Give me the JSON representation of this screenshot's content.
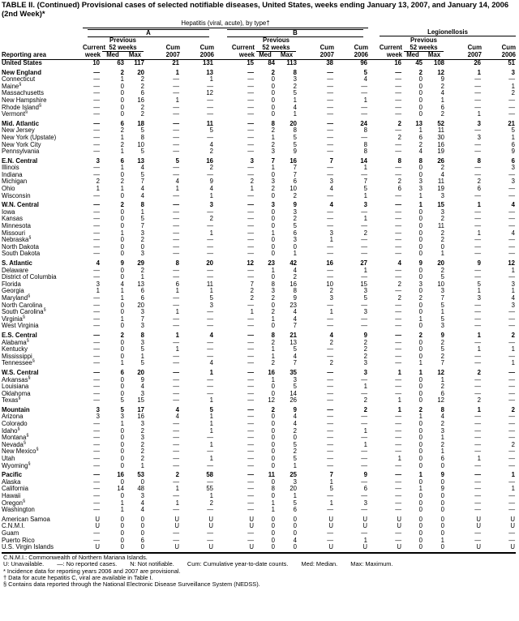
{
  "title": "TABLE II. (Continued) Provisional cases of selected notifiable diseases, United States, weeks ending January 13, 2007, and January 14, 2006 (2nd Week)*",
  "header": {
    "group": "Hepatitis (viral, acute), by type†",
    "sub_a": "A",
    "sub_b": "B",
    "legion": "Legionellosis",
    "reporting_area": "Reporting area",
    "current": "Current",
    "week": "week",
    "previous": "Previous",
    "weeks52": "52 weeks",
    "med": "Med",
    "max": "Max",
    "cum": "Cum",
    "y2007": "2007",
    "y2006": "2006"
  },
  "rows": [
    {
      "area": "United States",
      "bold": true,
      "v": [
        "10",
        "63",
        "117",
        "21",
        "131",
        "15",
        "84",
        "113",
        "38",
        "96",
        "16",
        "45",
        "108",
        "26",
        "51"
      ]
    },
    {
      "gap": true
    },
    {
      "area": "New England",
      "bold": true,
      "v": [
        "—",
        "2",
        "20",
        "1",
        "13",
        "—",
        "2",
        "8",
        "—",
        "5",
        "—",
        "2",
        "12",
        "1",
        "3"
      ]
    },
    {
      "area": "Connecticut",
      "v": [
        "—",
        "1",
        "2",
        "—",
        "1",
        "—",
        "0",
        "3",
        "—",
        "4",
        "—",
        "0",
        "9",
        "—",
        "—"
      ]
    },
    {
      "area": "Maine§",
      "v": [
        "—",
        "0",
        "2",
        "—",
        "—",
        "—",
        "0",
        "2",
        "—",
        "—",
        "—",
        "0",
        "2",
        "—",
        "1"
      ]
    },
    {
      "area": "Massachusetts",
      "v": [
        "—",
        "0",
        "6",
        "—",
        "12",
        "—",
        "0",
        "5",
        "—",
        "—",
        "—",
        "0",
        "4",
        "—",
        "2"
      ]
    },
    {
      "area": "New Hampshire",
      "v": [
        "—",
        "0",
        "16",
        "1",
        "—",
        "—",
        "0",
        "1",
        "—",
        "1",
        "—",
        "0",
        "1",
        "—",
        "—"
      ]
    },
    {
      "area": "Rhode Island§",
      "v": [
        "—",
        "0",
        "2",
        "—",
        "—",
        "—",
        "0",
        "4",
        "—",
        "—",
        "—",
        "0",
        "6",
        "—",
        "—"
      ]
    },
    {
      "area": "Vermont§",
      "v": [
        "—",
        "0",
        "2",
        "—",
        "—",
        "—",
        "0",
        "1",
        "—",
        "—",
        "—",
        "0",
        "2",
        "1",
        "—"
      ]
    },
    {
      "gap": true
    },
    {
      "area": "Mid. Atlantic",
      "bold": true,
      "v": [
        "—",
        "6",
        "18",
        "—",
        "11",
        "—",
        "8",
        "20",
        "—",
        "24",
        "2",
        "13",
        "52",
        "3",
        "21"
      ]
    },
    {
      "area": "New Jersey",
      "v": [
        "—",
        "2",
        "5",
        "—",
        "5",
        "—",
        "2",
        "8",
        "—",
        "8",
        "—",
        "1",
        "11",
        "—",
        "5"
      ]
    },
    {
      "area": "New York (Upstate)",
      "v": [
        "—",
        "1",
        "8",
        "—",
        "—",
        "—",
        "1",
        "5",
        "—",
        "—",
        "2",
        "6",
        "30",
        "3",
        "1"
      ]
    },
    {
      "area": "New York City",
      "v": [
        "—",
        "2",
        "10",
        "—",
        "4",
        "—",
        "2",
        "5",
        "—",
        "8",
        "—",
        "2",
        "16",
        "—",
        "6"
      ]
    },
    {
      "area": "Pennsylvania",
      "v": [
        "—",
        "1",
        "5",
        "—",
        "2",
        "—",
        "3",
        "9",
        "—",
        "8",
        "—",
        "4",
        "19",
        "—",
        "9"
      ]
    },
    {
      "gap": true
    },
    {
      "area": "E.N. Central",
      "bold": true,
      "v": [
        "3",
        "6",
        "13",
        "5",
        "16",
        "3",
        "7",
        "16",
        "7",
        "14",
        "8",
        "8",
        "26",
        "8",
        "6"
      ]
    },
    {
      "area": "Illinois",
      "v": [
        "—",
        "1",
        "4",
        "—",
        "2",
        "—",
        "1",
        "7",
        "—",
        "1",
        "—",
        "0",
        "2",
        "—",
        "3"
      ]
    },
    {
      "area": "Indiana",
      "v": [
        "—",
        "0",
        "5",
        "—",
        "—",
        "—",
        "0",
        "7",
        "—",
        "—",
        "—",
        "0",
        "4",
        "—",
        "—"
      ]
    },
    {
      "area": "Michigan",
      "v": [
        "2",
        "2",
        "7",
        "4",
        "9",
        "2",
        "3",
        "6",
        "3",
        "7",
        "2",
        "3",
        "11",
        "2",
        "3"
      ]
    },
    {
      "area": "Ohio",
      "v": [
        "1",
        "1",
        "4",
        "1",
        "4",
        "1",
        "2",
        "10",
        "4",
        "5",
        "6",
        "3",
        "19",
        "6",
        "—"
      ]
    },
    {
      "area": "Wisconsin",
      "v": [
        "—",
        "0",
        "4",
        "—",
        "1",
        "—",
        "0",
        "2",
        "—",
        "1",
        "—",
        "1",
        "3",
        "—",
        "—"
      ]
    },
    {
      "gap": true
    },
    {
      "area": "W.N. Central",
      "bold": true,
      "v": [
        "—",
        "2",
        "8",
        "—",
        "3",
        "—",
        "3",
        "9",
        "4",
        "3",
        "—",
        "1",
        "15",
        "1",
        "4"
      ]
    },
    {
      "area": "Iowa",
      "v": [
        "—",
        "0",
        "1",
        "—",
        "—",
        "—",
        "0",
        "3",
        "—",
        "—",
        "—",
        "0",
        "3",
        "—",
        "—"
      ]
    },
    {
      "area": "Kansas",
      "v": [
        "—",
        "0",
        "5",
        "—",
        "2",
        "—",
        "0",
        "2",
        "—",
        "1",
        "—",
        "0",
        "2",
        "—",
        "—"
      ]
    },
    {
      "area": "Minnesota",
      "v": [
        "—",
        "0",
        "7",
        "—",
        "—",
        "—",
        "0",
        "5",
        "—",
        "—",
        "—",
        "0",
        "11",
        "—",
        "—"
      ]
    },
    {
      "area": "Missouri",
      "v": [
        "—",
        "1",
        "3",
        "—",
        "1",
        "—",
        "1",
        "6",
        "3",
        "2",
        "—",
        "0",
        "2",
        "1",
        "4"
      ]
    },
    {
      "area": "Nebraska§",
      "v": [
        "—",
        "0",
        "2",
        "—",
        "—",
        "—",
        "0",
        "3",
        "1",
        "—",
        "—",
        "0",
        "2",
        "—",
        "—"
      ]
    },
    {
      "area": "North Dakota",
      "v": [
        "—",
        "0",
        "0",
        "—",
        "—",
        "—",
        "0",
        "0",
        "—",
        "—",
        "—",
        "0",
        "0",
        "—",
        "—"
      ]
    },
    {
      "area": "South Dakota",
      "v": [
        "—",
        "0",
        "3",
        "—",
        "—",
        "—",
        "0",
        "1",
        "—",
        "—",
        "—",
        "0",
        "1",
        "—",
        "—"
      ]
    },
    {
      "gap": true
    },
    {
      "area": "S. Atlantic",
      "bold": true,
      "v": [
        "4",
        "9",
        "29",
        "8",
        "20",
        "12",
        "23",
        "42",
        "16",
        "27",
        "4",
        "9",
        "20",
        "9",
        "12"
      ]
    },
    {
      "area": "Delaware",
      "v": [
        "—",
        "0",
        "2",
        "—",
        "—",
        "—",
        "1",
        "4",
        "—",
        "1",
        "—",
        "0",
        "2",
        "—",
        "1"
      ]
    },
    {
      "area": "District of Columbia",
      "v": [
        "—",
        "0",
        "1",
        "—",
        "—",
        "—",
        "0",
        "2",
        "—",
        "—",
        "—",
        "0",
        "5",
        "—",
        "—"
      ]
    },
    {
      "area": "Florida",
      "v": [
        "3",
        "4",
        "13",
        "6",
        "11",
        "7",
        "8",
        "16",
        "10",
        "15",
        "2",
        "3",
        "10",
        "5",
        "3"
      ]
    },
    {
      "area": "Georgia",
      "v": [
        "1",
        "1",
        "6",
        "1",
        "1",
        "2",
        "3",
        "8",
        "2",
        "3",
        "—",
        "0",
        "3",
        "1",
        "1"
      ]
    },
    {
      "area": "Maryland§",
      "v": [
        "—",
        "1",
        "6",
        "—",
        "5",
        "2",
        "2",
        "9",
        "3",
        "5",
        "2",
        "2",
        "7",
        "3",
        "4"
      ]
    },
    {
      "area": "North Carolina",
      "v": [
        "—",
        "0",
        "20",
        "—",
        "3",
        "—",
        "0",
        "23",
        "—",
        "—",
        "—",
        "0",
        "5",
        "—",
        "3"
      ]
    },
    {
      "area": "South Carolina§",
      "v": [
        "—",
        "0",
        "3",
        "1",
        "—",
        "1",
        "2",
        "4",
        "1",
        "3",
        "—",
        "0",
        "1",
        "—",
        "—"
      ]
    },
    {
      "area": "Virginia§",
      "v": [
        "—",
        "1",
        "7",
        "—",
        "—",
        "—",
        "1",
        "4",
        "—",
        "—",
        "—",
        "1",
        "5",
        "—",
        "—"
      ]
    },
    {
      "area": "West Virginia",
      "v": [
        "—",
        "0",
        "3",
        "—",
        "—",
        "—",
        "0",
        "7",
        "—",
        "—",
        "—",
        "0",
        "3",
        "—",
        "—"
      ]
    },
    {
      "gap": true
    },
    {
      "area": "E.S. Central",
      "bold": true,
      "v": [
        "—",
        "2",
        "8",
        "1",
        "4",
        "—",
        "8",
        "21",
        "4",
        "9",
        "—",
        "2",
        "9",
        "1",
        "2"
      ]
    },
    {
      "area": "Alabama§",
      "v": [
        "—",
        "0",
        "3",
        "—",
        "—",
        "—",
        "2",
        "13",
        "2",
        "2",
        "—",
        "0",
        "2",
        "—",
        "—"
      ]
    },
    {
      "area": "Kentucky",
      "v": [
        "—",
        "0",
        "5",
        "1",
        "—",
        "—",
        "1",
        "5",
        "—",
        "2",
        "—",
        "0",
        "5",
        "1",
        "1"
      ]
    },
    {
      "area": "Mississippi",
      "v": [
        "—",
        "0",
        "1",
        "—",
        "—",
        "—",
        "1",
        "4",
        "—",
        "2",
        "—",
        "0",
        "2",
        "—",
        "—"
      ]
    },
    {
      "area": "Tennessee§",
      "v": [
        "—",
        "1",
        "5",
        "—",
        "4",
        "—",
        "2",
        "7",
        "2",
        "3",
        "—",
        "1",
        "7",
        "—",
        "1"
      ]
    },
    {
      "gap": true
    },
    {
      "area": "W.S. Central",
      "bold": true,
      "v": [
        "—",
        "6",
        "20",
        "—",
        "1",
        "—",
        "16",
        "35",
        "—",
        "3",
        "1",
        "1",
        "12",
        "2",
        "—"
      ]
    },
    {
      "area": "Arkansas§",
      "v": [
        "—",
        "0",
        "9",
        "—",
        "—",
        "—",
        "1",
        "3",
        "—",
        "—",
        "—",
        "0",
        "1",
        "—",
        "—"
      ]
    },
    {
      "area": "Louisiana",
      "v": [
        "—",
        "0",
        "4",
        "—",
        "—",
        "—",
        "0",
        "5",
        "—",
        "1",
        "—",
        "0",
        "2",
        "—",
        "—"
      ]
    },
    {
      "area": "Oklahoma",
      "v": [
        "—",
        "0",
        "3",
        "—",
        "—",
        "—",
        "0",
        "14",
        "—",
        "—",
        "—",
        "0",
        "6",
        "—",
        "—"
      ]
    },
    {
      "area": "Texas§",
      "v": [
        "—",
        "5",
        "15",
        "—",
        "1",
        "—",
        "12",
        "26",
        "—",
        "2",
        "1",
        "0",
        "12",
        "2",
        "—"
      ]
    },
    {
      "gap": true
    },
    {
      "area": "Mountain",
      "bold": true,
      "v": [
        "3",
        "5",
        "17",
        "4",
        "5",
        "—",
        "2",
        "9",
        "—",
        "2",
        "1",
        "2",
        "8",
        "1",
        "2"
      ]
    },
    {
      "area": "Arizona",
      "v": [
        "3",
        "3",
        "16",
        "4",
        "1",
        "—",
        "0",
        "4",
        "—",
        "—",
        "—",
        "1",
        "4",
        "—",
        "—"
      ]
    },
    {
      "area": "Colorado",
      "v": [
        "—",
        "1",
        "3",
        "—",
        "1",
        "—",
        "0",
        "4",
        "—",
        "—",
        "—",
        "0",
        "2",
        "—",
        "—"
      ]
    },
    {
      "area": "Idaho§",
      "v": [
        "—",
        "0",
        "2",
        "—",
        "1",
        "—",
        "0",
        "2",
        "—",
        "1",
        "—",
        "0",
        "3",
        "—",
        "—"
      ]
    },
    {
      "area": "Montana§",
      "v": [
        "—",
        "0",
        "3",
        "—",
        "—",
        "—",
        "0",
        "0",
        "—",
        "—",
        "—",
        "0",
        "1",
        "—",
        "—"
      ]
    },
    {
      "area": "Nevada§",
      "v": [
        "—",
        "0",
        "2",
        "—",
        "1",
        "—",
        "0",
        "5",
        "—",
        "1",
        "—",
        "0",
        "2",
        "—",
        "2"
      ]
    },
    {
      "area": "New Mexico§",
      "v": [
        "—",
        "0",
        "2",
        "—",
        "—",
        "—",
        "0",
        "2",
        "—",
        "—",
        "—",
        "0",
        "1",
        "—",
        "—"
      ]
    },
    {
      "area": "Utah",
      "v": [
        "—",
        "0",
        "2",
        "—",
        "1",
        "—",
        "0",
        "5",
        "—",
        "—",
        "1",
        "0",
        "6",
        "1",
        "—"
      ]
    },
    {
      "area": "Wyoming§",
      "v": [
        "—",
        "0",
        "1",
        "—",
        "—",
        "—",
        "0",
        "1",
        "—",
        "—",
        "—",
        "0",
        "0",
        "—",
        "—"
      ]
    },
    {
      "gap": true
    },
    {
      "area": "Pacific",
      "bold": true,
      "v": [
        "—",
        "16",
        "53",
        "2",
        "58",
        "—",
        "11",
        "25",
        "7",
        "9",
        "—",
        "1",
        "9",
        "—",
        "1"
      ]
    },
    {
      "area": "Alaska",
      "v": [
        "—",
        "0",
        "0",
        "—",
        "—",
        "—",
        "0",
        "3",
        "1",
        "—",
        "—",
        "0",
        "0",
        "—",
        "—"
      ]
    },
    {
      "area": "California",
      "v": [
        "—",
        "14",
        "48",
        "1",
        "55",
        "—",
        "8",
        "20",
        "5",
        "6",
        "—",
        "1",
        "9",
        "—",
        "1"
      ]
    },
    {
      "area": "Hawaii",
      "v": [
        "—",
        "0",
        "3",
        "—",
        "1",
        "—",
        "0",
        "1",
        "—",
        "—",
        "—",
        "0",
        "0",
        "—",
        "—"
      ]
    },
    {
      "area": "Oregon§",
      "v": [
        "—",
        "1",
        "4",
        "1",
        "2",
        "—",
        "1",
        "5",
        "1",
        "3",
        "—",
        "0",
        "0",
        "—",
        "—"
      ]
    },
    {
      "area": "Washington",
      "v": [
        "—",
        "1",
        "4",
        "—",
        "—",
        "—",
        "1",
        "6",
        "—",
        "—",
        "—",
        "0",
        "0",
        "—",
        "—"
      ]
    },
    {
      "gap": true
    },
    {
      "area": "American Samoa",
      "v": [
        "U",
        "0",
        "0",
        "U",
        "U",
        "U",
        "0",
        "0",
        "U",
        "U",
        "U",
        "0",
        "0",
        "U",
        "U"
      ]
    },
    {
      "area": "C.N.M.I.",
      "v": [
        "U",
        "0",
        "0",
        "U",
        "U",
        "U",
        "0",
        "0",
        "U",
        "U",
        "U",
        "0",
        "0",
        "U",
        "U"
      ]
    },
    {
      "area": "Guam",
      "v": [
        "—",
        "0",
        "0",
        "—",
        "—",
        "—",
        "0",
        "0",
        "—",
        "—",
        "—",
        "0",
        "0",
        "—",
        "—"
      ]
    },
    {
      "area": "Puerto Rico",
      "v": [
        "—",
        "0",
        "6",
        "—",
        "—",
        "—",
        "0",
        "4",
        "—",
        "1",
        "—",
        "0",
        "1",
        "—",
        "—"
      ]
    },
    {
      "area": "U.S. Virgin Islands",
      "v": [
        "U",
        "0",
        "0",
        "U",
        "U",
        "U",
        "0",
        "0",
        "U",
        "U",
        "U",
        "0",
        "0",
        "U",
        "U"
      ]
    }
  ],
  "footnotes": {
    "cnmi": "C.N.M.I.: Commonwealth of Northern Mariana Islands.",
    "legend": [
      "U: Unavailable.",
      "—: No reported cases.",
      "N: Not notifiable.",
      "Cum: Cumulative year-to-date counts.",
      "Med: Median.",
      "Max: Maximum."
    ],
    "notes": [
      "* Incidence data for reporting years 2006 and 2007 are provisional.",
      "† Data for acute hepatitis C, viral are available in Table I.",
      "§ Contains data reported through the National Electronic Disease Surveillance System (NEDSS)."
    ]
  }
}
